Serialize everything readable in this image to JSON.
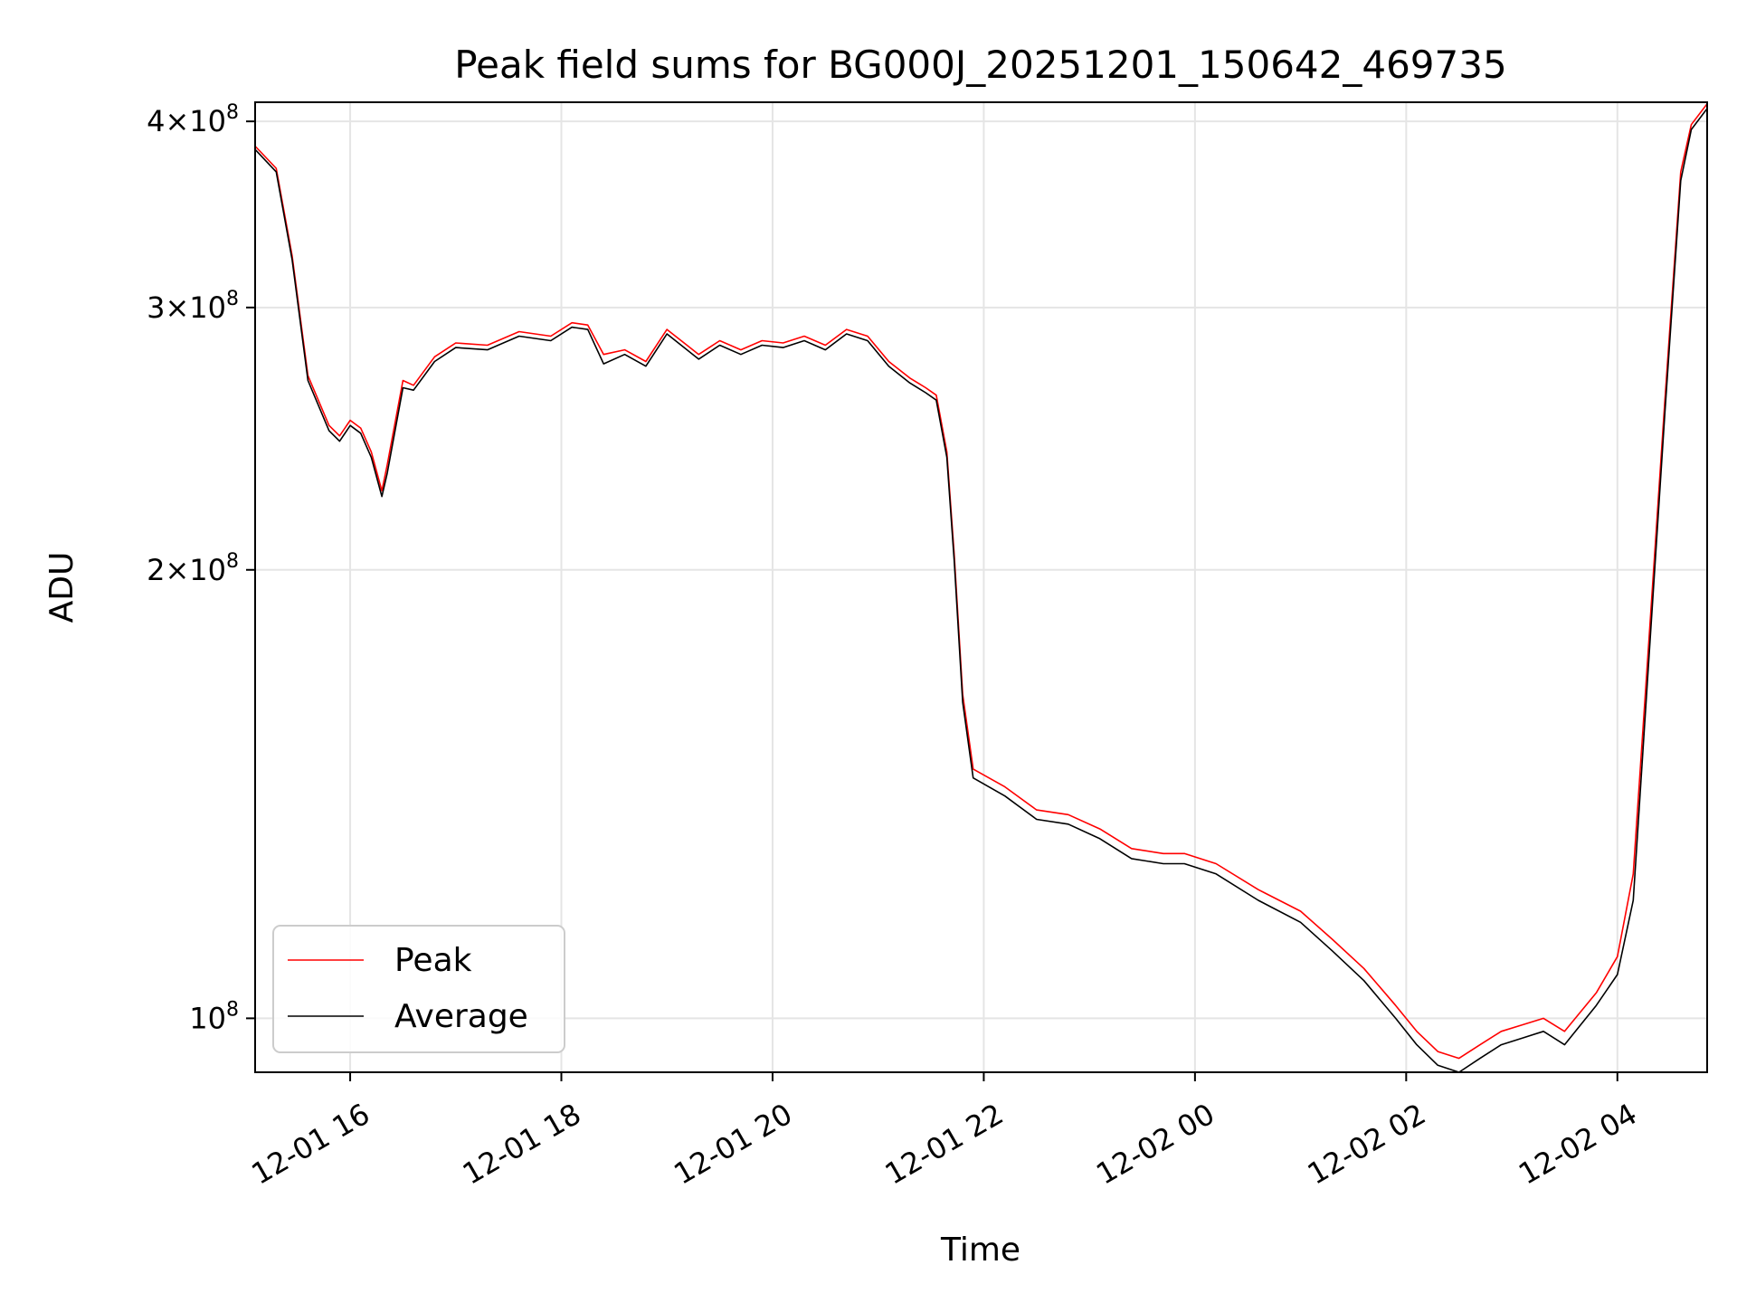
{
  "chart_data": {
    "type": "line",
    "title": "Peak field sums for BG000J_20251201_150642_469735",
    "xlabel": "Time",
    "ylabel": "ADU",
    "x_unit": "hours since 12-01 00:00",
    "xlim": [
      15.1,
      28.85
    ],
    "ylim": [
      92000000.0,
      412000000.0
    ],
    "yscale": "log",
    "grid": true,
    "legend_position": "lower-left",
    "x_ticks": [
      {
        "value": 16,
        "label": "12-01 16"
      },
      {
        "value": 18,
        "label": "12-01 18"
      },
      {
        "value": 20,
        "label": "12-01 20"
      },
      {
        "value": 22,
        "label": "12-01 22"
      },
      {
        "value": 24,
        "label": "12-02 00"
      },
      {
        "value": 26,
        "label": "12-02 02"
      },
      {
        "value": 28,
        "label": "12-02 04"
      }
    ],
    "y_ticks": [
      {
        "value": 100000000,
        "mantissa": "",
        "exp": "8"
      },
      {
        "value": 200000000,
        "mantissa": "2",
        "exp": "8"
      },
      {
        "value": 300000000,
        "mantissa": "3",
        "exp": "8"
      },
      {
        "value": 400000000,
        "mantissa": "4",
        "exp": "8"
      }
    ],
    "series": [
      {
        "name": "Peak",
        "color": "#ff0000",
        "x": [
          15.1,
          15.3,
          15.45,
          15.6,
          15.8,
          15.9,
          16.0,
          16.1,
          16.2,
          16.3,
          16.35,
          16.5,
          16.6,
          16.8,
          17.0,
          17.3,
          17.6,
          17.9,
          18.1,
          18.25,
          18.4,
          18.6,
          18.8,
          19.0,
          19.3,
          19.5,
          19.7,
          19.9,
          20.1,
          20.3,
          20.5,
          20.7,
          20.9,
          21.1,
          21.3,
          21.45,
          21.55,
          21.65,
          21.72,
          21.8,
          21.9,
          22.2,
          22.5,
          22.8,
          23.1,
          23.4,
          23.7,
          23.9,
          24.2,
          24.6,
          25.0,
          25.3,
          25.6,
          25.9,
          26.1,
          26.3,
          26.5,
          26.7,
          26.9,
          27.1,
          27.3,
          27.5,
          27.8,
          28.0,
          28.15,
          28.3,
          28.45,
          28.6,
          28.7,
          28.85
        ],
        "values": [
          385000000,
          372000000,
          325000000,
          270000000,
          250000000,
          246000000,
          252000000,
          249000000,
          240000000,
          226000000,
          235000000,
          268000000,
          266000000,
          278000000,
          284000000,
          283000000,
          289000000,
          287000000,
          293000000,
          292000000,
          279000000,
          281000000,
          276000000,
          290000000,
          279000000,
          285000000,
          281000000,
          285000000,
          284000000,
          287000000,
          283000000,
          290000000,
          287000000,
          276000000,
          269000000,
          265000000,
          262000000,
          240000000,
          205000000,
          165000000,
          147000000,
          143000000,
          138000000,
          137000000,
          134000000,
          130000000,
          129000000,
          129000000,
          127000000,
          122000000,
          118000000,
          113000000,
          108000000,
          102000000,
          98000000,
          95000000,
          94000000,
          96000000,
          98000000,
          99000000,
          100000000,
          98000000,
          104000000,
          110000000,
          125000000,
          180000000,
          260000000,
          370000000,
          398000000,
          411000000
        ]
      },
      {
        "name": "Average",
        "color": "#000000",
        "x": [
          15.1,
          15.3,
          15.45,
          15.6,
          15.8,
          15.9,
          16.0,
          16.1,
          16.2,
          16.3,
          16.35,
          16.5,
          16.6,
          16.8,
          17.0,
          17.3,
          17.6,
          17.9,
          18.1,
          18.25,
          18.4,
          18.6,
          18.8,
          19.0,
          19.3,
          19.5,
          19.7,
          19.9,
          20.1,
          20.3,
          20.5,
          20.7,
          20.9,
          21.1,
          21.3,
          21.45,
          21.55,
          21.65,
          21.72,
          21.8,
          21.9,
          22.2,
          22.5,
          22.8,
          23.1,
          23.4,
          23.7,
          23.9,
          24.2,
          24.6,
          25.0,
          25.3,
          25.6,
          25.9,
          26.1,
          26.3,
          26.5,
          26.7,
          26.9,
          27.1,
          27.3,
          27.5,
          27.8,
          28.0,
          28.15,
          28.3,
          28.45,
          28.6,
          28.7,
          28.85
        ],
        "values": [
          383000000,
          370000000,
          323000000,
          268000000,
          248000000,
          244000000,
          250000000,
          247000000,
          238000000,
          224000000,
          232000000,
          265000000,
          264000000,
          276000000,
          282000000,
          281000000,
          287000000,
          285000000,
          291000000,
          290000000,
          275000000,
          279000000,
          274000000,
          288000000,
          277000000,
          283000000,
          279000000,
          283000000,
          282000000,
          285000000,
          281000000,
          288000000,
          285000000,
          274000000,
          267000000,
          263000000,
          260000000,
          238000000,
          203000000,
          163000000,
          145000000,
          141000000,
          136000000,
          135000000,
          132000000,
          128000000,
          127000000,
          127000000,
          125000000,
          120000000,
          116000000,
          111000000,
          106000000,
          100000000,
          96000000,
          93000000,
          92000000,
          94000000,
          96000000,
          97000000,
          98000000,
          96000000,
          102000000,
          107000000,
          120000000,
          175000000,
          255000000,
          365000000,
          395000000,
          408000000
        ]
      }
    ],
    "legend": [
      "Peak",
      "Average"
    ]
  }
}
